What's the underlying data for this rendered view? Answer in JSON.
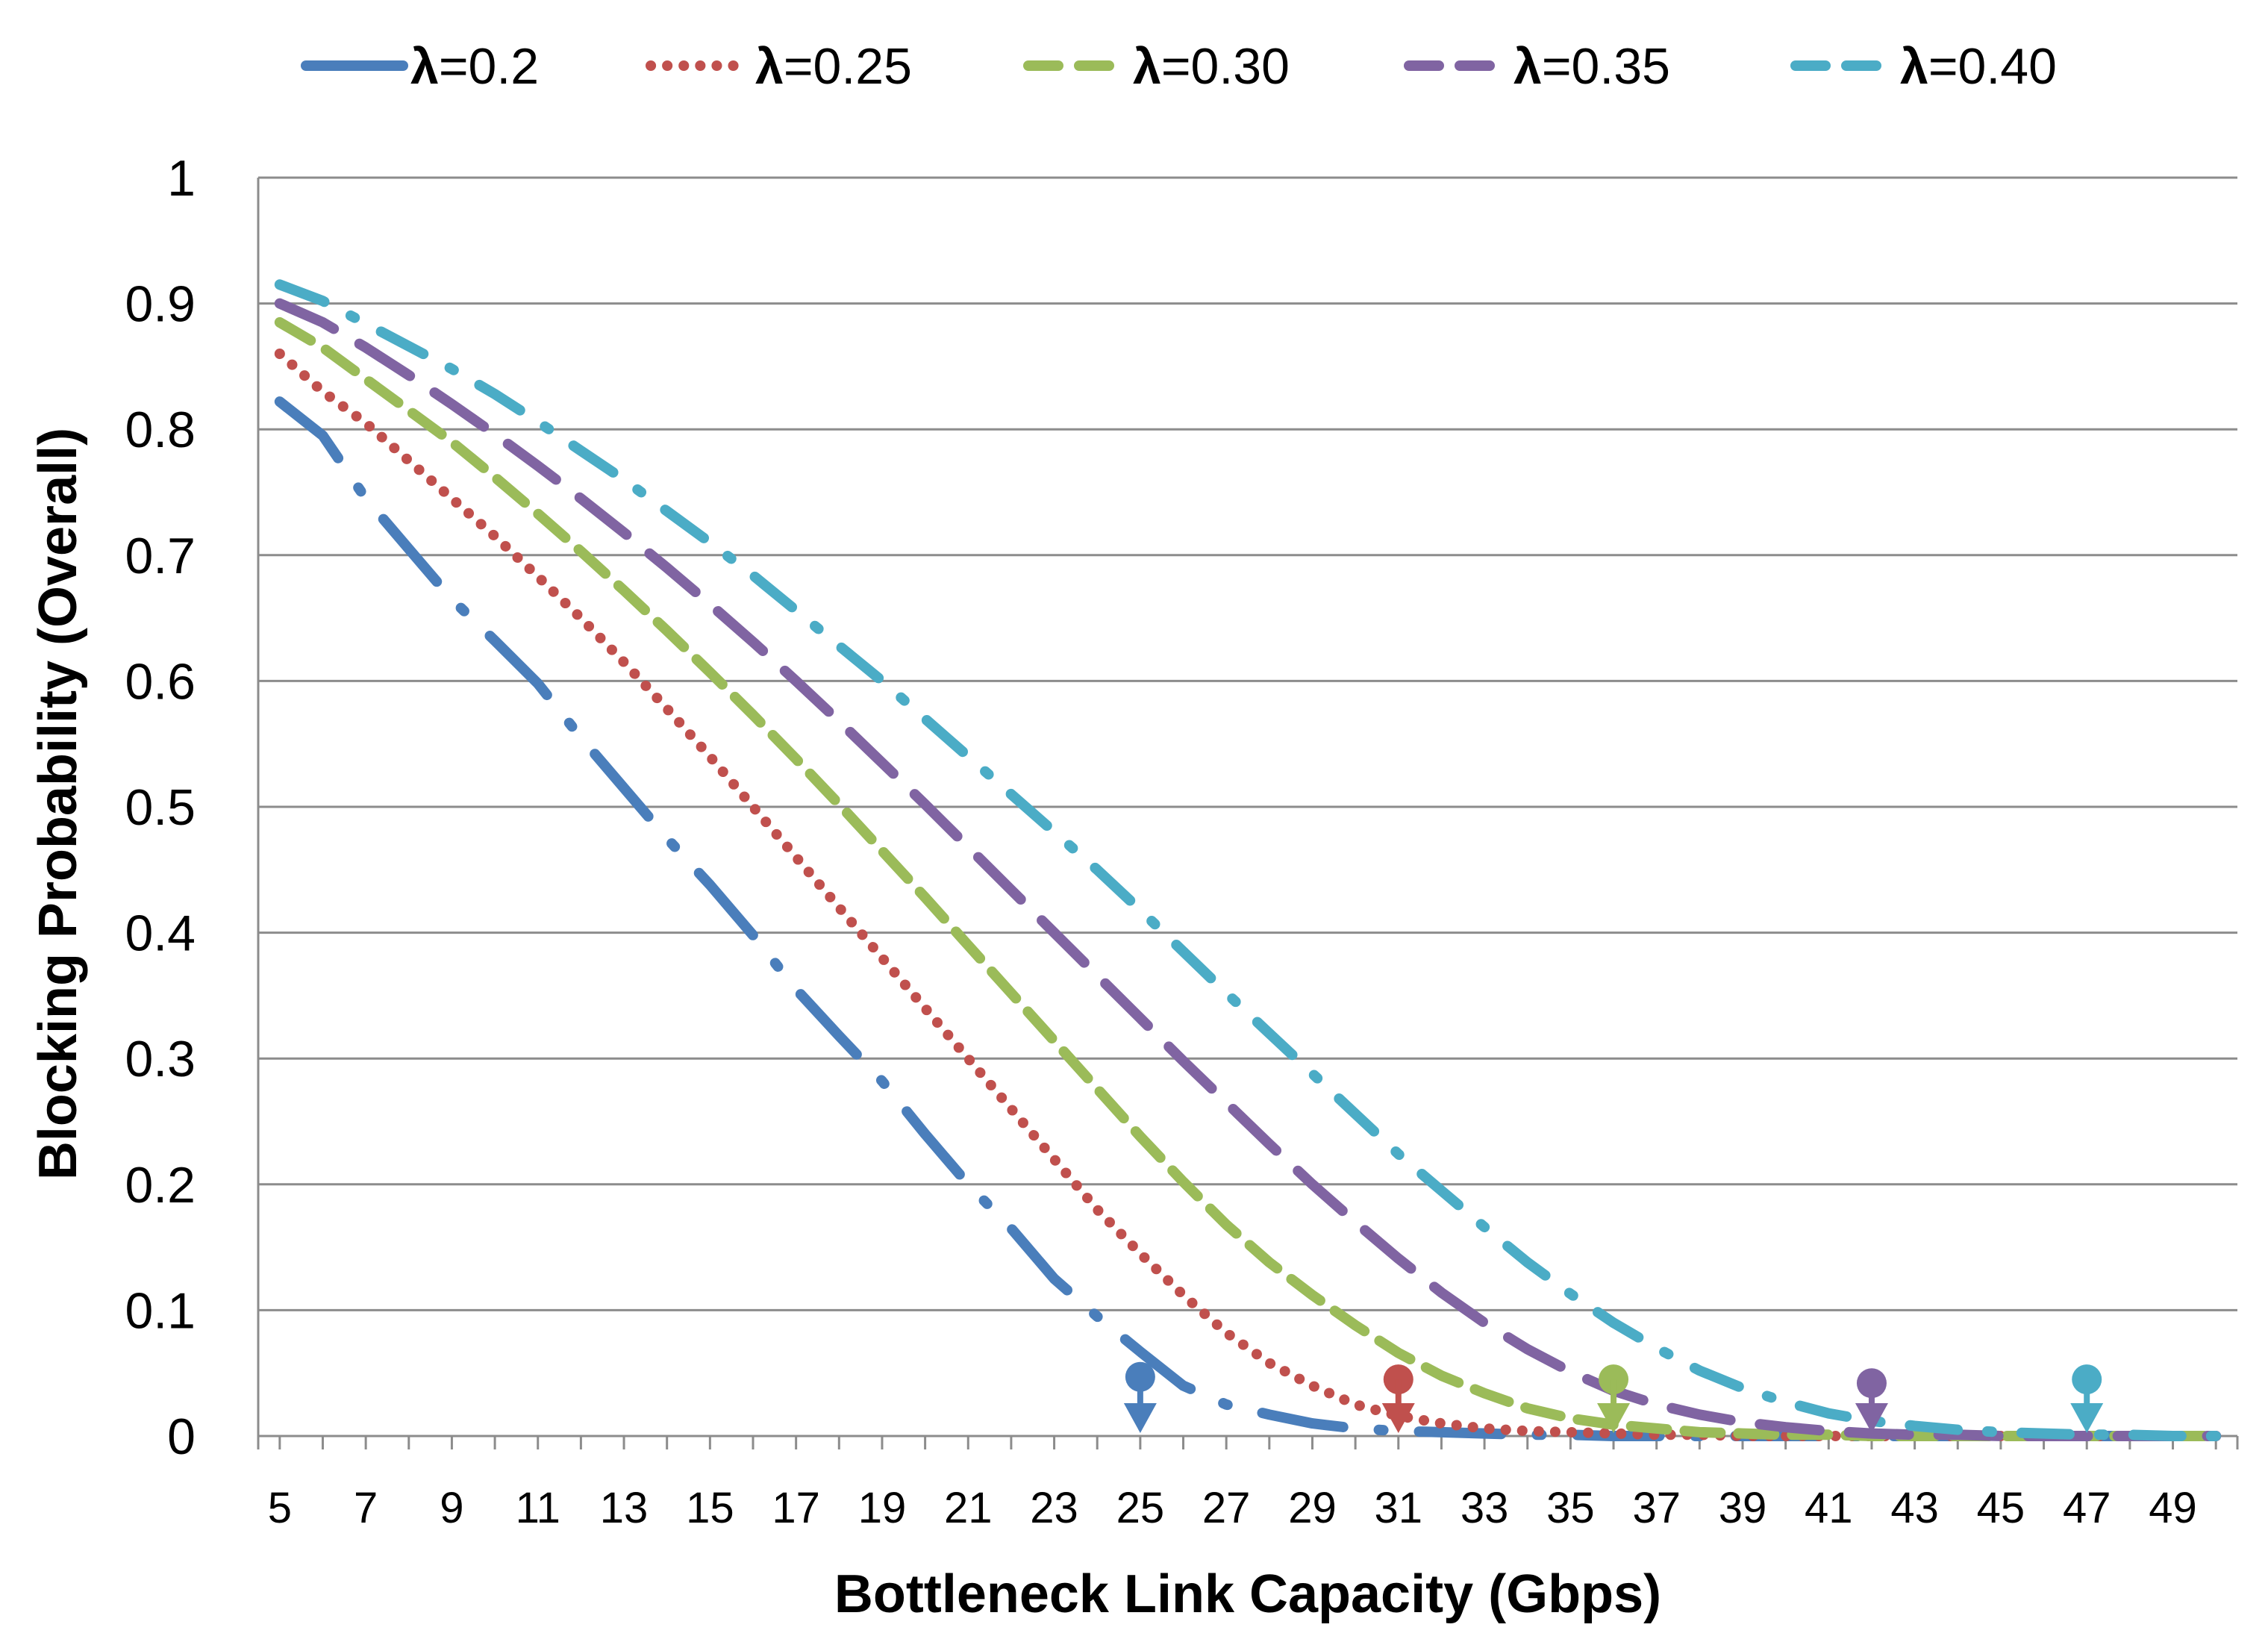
{
  "chart_data": {
    "type": "line",
    "title": "",
    "xlabel": "Bottleneck Link Capacity (Gbps)",
    "ylabel": "Blocking Probability (Overall)",
    "xlim": [
      4.5,
      50.5
    ],
    "ylim": [
      0,
      1
    ],
    "x_ticks": [
      "5",
      "7",
      "9",
      "11",
      "13",
      "15",
      "17",
      "19",
      "21",
      "23",
      "25",
      "27",
      "29",
      "31",
      "33",
      "35",
      "37",
      "39",
      "41",
      "43",
      "45",
      "47",
      "49"
    ],
    "y_ticks": [
      "0",
      "0.1",
      "0.2",
      "0.3",
      "0.4",
      "0.5",
      "0.6",
      "0.7",
      "0.8",
      "0.9",
      "1"
    ],
    "grid": "horizontal",
    "legend_position": "top",
    "x": [
      5,
      6,
      7,
      8,
      9,
      10,
      11,
      12,
      13,
      14,
      15,
      16,
      17,
      18,
      19,
      20,
      21,
      22,
      23,
      24,
      25,
      26,
      27,
      28,
      29,
      30,
      31,
      32,
      33,
      34,
      35,
      36,
      37,
      38,
      39,
      40,
      41,
      42,
      43,
      44,
      45,
      46,
      47,
      48,
      49,
      50
    ],
    "series": [
      {
        "name": "=0.2",
        "symbol": "λ",
        "color": "#4a7ebb",
        "dash": "longdashdot",
        "values": [
          0.822,
          0.795,
          0.745,
          0.705,
          0.665,
          0.632,
          0.598,
          0.555,
          0.515,
          0.475,
          0.438,
          0.398,
          0.355,
          0.318,
          0.282,
          0.24,
          0.2,
          0.165,
          0.125,
          0.095,
          0.067,
          0.04,
          0.025,
          0.017,
          0.01,
          0.006,
          0.004,
          0.003,
          0.002,
          0.001,
          0.001,
          0,
          0,
          0,
          0,
          0,
          0,
          0,
          0,
          0,
          0,
          0,
          0,
          0,
          0,
          0
        ]
      },
      {
        "name": "=0.25",
        "symbol": "λ",
        "color": "#c0504d",
        "dash": "dot",
        "values": [
          0.86,
          0.83,
          0.805,
          0.775,
          0.745,
          0.715,
          0.683,
          0.65,
          0.615,
          0.578,
          0.54,
          0.5,
          0.46,
          0.42,
          0.38,
          0.34,
          0.3,
          0.26,
          0.22,
          0.18,
          0.145,
          0.112,
          0.082,
          0.058,
          0.04,
          0.025,
          0.016,
          0.01,
          0.006,
          0.004,
          0.003,
          0.002,
          0.001,
          0.001,
          0,
          0,
          0,
          0,
          0,
          0,
          0,
          0,
          0,
          0,
          0,
          0
        ]
      },
      {
        "name": "=0.30",
        "symbol": "λ",
        "color": "#9bbb59",
        "dash": "dash",
        "values": [
          0.885,
          0.865,
          0.84,
          0.815,
          0.79,
          0.762,
          0.733,
          0.703,
          0.672,
          0.64,
          0.607,
          0.573,
          0.538,
          0.502,
          0.465,
          0.428,
          0.39,
          0.352,
          0.314,
          0.276,
          0.238,
          0.202,
          0.168,
          0.138,
          0.112,
          0.088,
          0.066,
          0.048,
          0.034,
          0.022,
          0.014,
          0.009,
          0.006,
          0.003,
          0.002,
          0.001,
          0.001,
          0,
          0,
          0,
          0,
          0,
          0,
          0,
          0,
          0
        ]
      },
      {
        "name": "=0.35",
        "symbol": "λ",
        "color": "#8064a2",
        "dash": "longdash",
        "values": [
          0.9,
          0.885,
          0.865,
          0.843,
          0.82,
          0.796,
          0.771,
          0.745,
          0.718,
          0.69,
          0.661,
          0.631,
          0.6,
          0.568,
          0.535,
          0.502,
          0.468,
          0.434,
          0.4,
          0.366,
          0.332,
          0.298,
          0.265,
          0.232,
          0.2,
          0.17,
          0.141,
          0.114,
          0.09,
          0.069,
          0.051,
          0.036,
          0.025,
          0.017,
          0.011,
          0.007,
          0.004,
          0.002,
          0.001,
          0.001,
          0,
          0,
          0,
          0,
          0,
          0
        ]
      },
      {
        "name": "=0.40",
        "symbol": "λ",
        "color": "#4bacc6",
        "dash": "dashdot",
        "values": [
          0.915,
          0.902,
          0.884,
          0.866,
          0.848,
          0.828,
          0.806,
          0.783,
          0.76,
          0.735,
          0.71,
          0.684,
          0.656,
          0.628,
          0.6,
          0.57,
          0.54,
          0.51,
          0.48,
          0.45,
          0.418,
          0.385,
          0.352,
          0.32,
          0.288,
          0.256,
          0.224,
          0.195,
          0.166,
          0.138,
          0.113,
          0.09,
          0.07,
          0.052,
          0.038,
          0.027,
          0.018,
          0.012,
          0.008,
          0.005,
          0.003,
          0.002,
          0.001,
          0.001,
          0,
          0
        ]
      }
    ],
    "annotations": [
      {
        "series": 0,
        "x": 25,
        "y": 0.047,
        "type": "marker-arrow"
      },
      {
        "series": 1,
        "x": 31,
        "y": 0.045,
        "type": "marker-arrow"
      },
      {
        "series": 2,
        "x": 36,
        "y": 0.045,
        "type": "marker-arrow"
      },
      {
        "series": 3,
        "x": 42,
        "y": 0.042,
        "type": "marker-arrow"
      },
      {
        "series": 4,
        "x": 47,
        "y": 0.045,
        "type": "marker-arrow"
      }
    ]
  }
}
